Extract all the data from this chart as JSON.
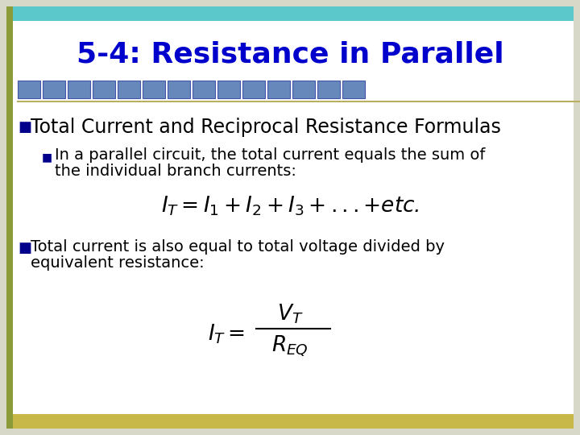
{
  "title": "5-4: Resistance in Parallel",
  "title_color": "#0000CC",
  "title_fontsize": 26,
  "bg_color": "#FFFFFF",
  "border_top_color": "#5BC8CC",
  "border_left_color": "#8B9B3A",
  "border_bottom_color": "#C8B84A",
  "bullet1_text": "Total Current and Reciprocal Resistance Formulas",
  "bullet1_fontsize": 17,
  "bullet1_color": "#000000",
  "bullet_marker_color": "#00008B",
  "sub_bullet1_line1": "In a parallel circuit, the total current equals the sum of",
  "sub_bullet1_line2": "the individual branch currents:",
  "sub_bullet1_fontsize": 14,
  "sub_bullet1_color": "#000000",
  "formula1_fontsize": 19,
  "formula1_color": "#000000",
  "bullet2_line1": "Total current is also equal to total voltage divided by",
  "bullet2_line2": "equivalent resistance:",
  "bullet2_fontsize": 14,
  "bullet2_color": "#000000",
  "tile_color": "#6688BB",
  "tile_edge_color": "#4455AA",
  "slide_outer_bg": "#D8D8C8"
}
